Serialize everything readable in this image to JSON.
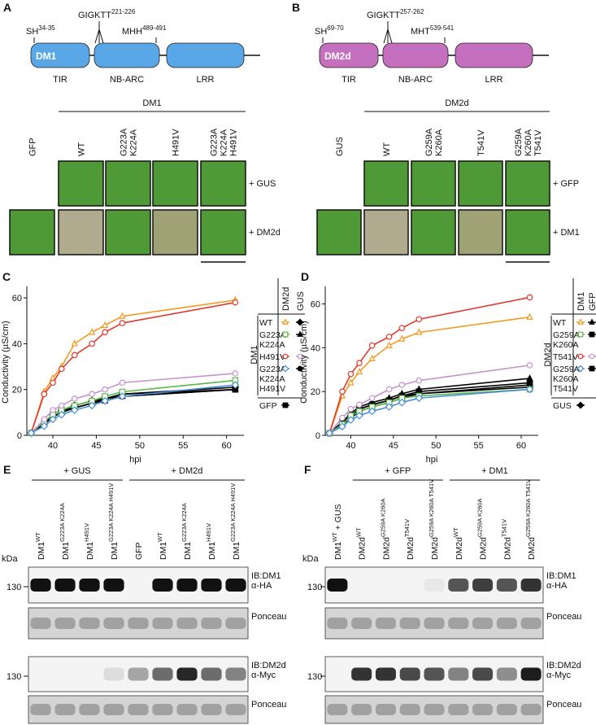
{
  "panels": [
    {
      "letter": "A",
      "domain": {
        "protein": "DM1",
        "color": "#5aa7e8",
        "motifs": [
          {
            "text": "SH",
            "sup": "34-35"
          },
          {
            "text": "GIGKTT",
            "sup": "221-226"
          },
          {
            "text": "MHH",
            "sup": "489-491"
          }
        ],
        "domains": [
          "TIR",
          "NB-ARC",
          "LRR"
        ]
      },
      "leaves": {
        "header": "DM1",
        "control": [
          "GFP"
        ],
        "columns": [
          [
            "WT"
          ],
          [
            "G223A",
            "K224A"
          ],
          [
            "H491V"
          ],
          [
            "G223A",
            "K224A",
            "H491V"
          ]
        ],
        "rows": [
          "+ GUS",
          "+ DM2d"
        ]
      }
    },
    {
      "letter": "B",
      "domain": {
        "protein": "DM2d",
        "color": "#c56fbf",
        "motifs": [
          {
            "text": "SH",
            "sup": "69-70"
          },
          {
            "text": "GIGKTT",
            "sup": "257-262"
          },
          {
            "text": "MHT",
            "sup": "539-541"
          }
        ],
        "domains": [
          "TIR",
          "NB-ARC",
          "LRR"
        ]
      },
      "leaves": {
        "header": "DM2d",
        "control": [
          "GUS"
        ],
        "columns": [
          [
            "WT"
          ],
          [
            "G259A",
            "K260A"
          ],
          [
            "T541V"
          ],
          [
            "G259A",
            "K260A",
            "T541V"
          ]
        ],
        "rows": [
          "+ GFP",
          "+ DM1"
        ]
      }
    }
  ],
  "chart_data": [
    {
      "type": "line",
      "letter": "C",
      "y_label": "Conductivity (µS/cm)",
      "x_label": "hpi",
      "x": [
        37.5,
        39,
        40,
        41,
        42.5,
        44.5,
        46,
        48,
        61
      ],
      "xlim": [
        37,
        62
      ],
      "ylim": [
        0,
        65
      ],
      "xticks": [
        40,
        45,
        50,
        55,
        60
      ],
      "yticks": [
        0,
        20,
        40,
        60
      ],
      "legend": {
        "columns": [
          "DM2d",
          "GUS"
        ],
        "group": "DM1",
        "rows": [
          {
            "label": [
              "WT"
            ],
            "series": [
              {
                "color": "#f39a1e",
                "marker": "triangle",
                "filled": false,
                "values": [
                  1,
                  19,
                  25,
                  30,
                  40,
                  45,
                  48,
                  52,
                  59
                ]
              },
              {
                "color": "#000000",
                "marker": "diamond",
                "filled": true,
                "values": [
                  1,
                  5,
                  9,
                  11,
                  13,
                  15,
                  16,
                  18,
                  21
                ]
              }
            ]
          },
          {
            "label": [
              "G223A",
              "K224A"
            ],
            "series": [
              {
                "color": "#5cb848",
                "marker": "square",
                "filled": false,
                "values": [
                  1,
                  6,
                  9,
                  11,
                  13,
                  15,
                  17,
                  19,
                  24
                ]
              },
              {
                "color": "#000000",
                "marker": "triangle",
                "filled": true,
                "values": [
                  1,
                  5,
                  8,
                  10,
                  12,
                  14,
                  15,
                  17,
                  20
                ]
              }
            ]
          },
          {
            "label": [
              "H491V"
            ],
            "series": [
              {
                "color": "#e03a2e",
                "marker": "circle",
                "filled": false,
                "values": [
                  1,
                  18,
                  23,
                  29,
                  35,
                  40,
                  45,
                  49,
                  58
                ]
              },
              {
                "color": "#c693cf",
                "marker": "circle",
                "filled": false,
                "values": [
                  1,
                  7,
                  11,
                  13,
                  16,
                  18,
                  20,
                  23,
                  27
                ]
              }
            ]
          },
          {
            "label": [
              "G223A",
              "K224A",
              "H491V"
            ],
            "series": [
              {
                "color": "#4a90d9",
                "marker": "diamond",
                "filled": false,
                "values": [
                  1,
                  4,
                  7,
                  9,
                  11,
                  13,
                  15,
                  17,
                  22
                ]
              },
              {
                "color": "#000000",
                "marker": "circle",
                "filled": true,
                "values": [
                  1,
                  5,
                  8,
                  10,
                  12,
                  14,
                  16,
                  17,
                  20
                ]
              }
            ]
          }
        ],
        "control": {
          "label": [
            "GFP"
          ],
          "series": [
            {
              "color": "#000000",
              "marker": "square",
              "filled": true,
              "values": [
                1,
                5,
                9,
                11,
                12,
                14,
                16,
                18,
                20
              ]
            }
          ]
        }
      }
    },
    {
      "type": "line",
      "letter": "D",
      "y_label": "Conductivity (µS/cm)",
      "x_label": "hpi",
      "x": [
        37.5,
        39,
        40,
        41,
        42.5,
        44.5,
        46,
        48,
        61
      ],
      "xlim": [
        37,
        62
      ],
      "ylim": [
        0,
        68
      ],
      "xticks": [
        40,
        45,
        50,
        55,
        60
      ],
      "yticks": [
        0,
        20,
        40,
        60
      ],
      "legend": {
        "columns": [
          "DM1",
          "GFP"
        ],
        "group": "DM2d",
        "rows": [
          {
            "label": [
              "WT"
            ],
            "series": [
              {
                "color": "#f39a1e",
                "marker": "triangle",
                "filled": false,
                "values": [
                  1,
                  18,
                  24,
                  29,
                  35,
                  41,
                  44,
                  47,
                  54
                ]
              },
              {
                "color": "#000000",
                "marker": "triangle",
                "filled": true,
                "values": [
                  1,
                  6,
                  10,
                  13,
                  15,
                  17,
                  19,
                  21,
                  26
                ]
              }
            ]
          },
          {
            "label": [
              "G259A",
              "K260A"
            ],
            "series": [
              {
                "color": "#5cb848",
                "marker": "square",
                "filled": false,
                "values": [
                  1,
                  5,
                  9,
                  11,
                  13,
                  15,
                  17,
                  18,
                  21
                ]
              },
              {
                "color": "#000000",
                "marker": "square",
                "filled": true,
                "values": [
                  1,
                  6,
                  9,
                  12,
                  14,
                  16,
                  18,
                  20,
                  24
                ]
              }
            ]
          },
          {
            "label": [
              "T541V"
            ],
            "series": [
              {
                "color": "#e03a2e",
                "marker": "circle",
                "filled": false,
                "values": [
                  1,
                  20,
                  28,
                  33,
                  41,
                  45,
                  49,
                  53,
                  63
                ]
              },
              {
                "color": "#c693cf",
                "marker": "circle",
                "filled": false,
                "values": [
                  1,
                  8,
                  12,
                  14,
                  17,
                  21,
                  23,
                  25,
                  32
                ]
              }
            ]
          },
          {
            "label": [
              "G259A",
              "K260A",
              "T541V"
            ],
            "series": [
              {
                "color": "#4a90d9",
                "marker": "diamond",
                "filled": false,
                "values": [
                  1,
                  4,
                  7,
                  9,
                  11,
                  13,
                  15,
                  17,
                  21
                ]
              },
              {
                "color": "#000000",
                "marker": "square",
                "filled": true,
                "values": [
                  1,
                  5,
                  8,
                  11,
                  13,
                  15,
                  17,
                  19,
                  23
                ]
              }
            ]
          }
        ],
        "control": {
          "label": [
            "GUS"
          ],
          "series": [
            {
              "color": "#000000",
              "marker": "diamond",
              "filled": true,
              "values": [
                1,
                6,
                9,
                12,
                14,
                16,
                18,
                19,
                22
              ]
            }
          ]
        }
      }
    }
  ],
  "blots": [
    {
      "letter": "E",
      "kda": "kDa",
      "groups": [
        "+ GUS",
        "+ DM2d"
      ],
      "lanes": [
        {
          "text": "DM1",
          "sup": "WT"
        },
        {
          "text": "DM1",
          "sup": "G223A K224A"
        },
        {
          "text": "DM1",
          "sup": "H491V"
        },
        {
          "text": "DM1",
          "sup": "G223A K224A H491V"
        },
        {
          "text": "GFP"
        },
        {
          "text": "DM1",
          "sup": "WT"
        },
        {
          "text": "DM1",
          "sup": "G223A K224A"
        },
        {
          "text": "DM1",
          "sup": "H491V"
        },
        {
          "text": "DM1",
          "sup": "G223A K224A H491V"
        }
      ],
      "strips": [
        {
          "label": [
            "IB:DM1",
            "α-HA"
          ],
          "size": 130
        },
        {
          "label": [
            "Ponceau"
          ]
        },
        {
          "label": [
            "IB:DM2d",
            "α-Myc"
          ],
          "size": 130
        },
        {
          "label": [
            "Ponceau"
          ]
        }
      ]
    },
    {
      "letter": "F",
      "kda": "kDa",
      "groups": [
        "+ GFP",
        "+ DM1"
      ],
      "lanes": [
        {
          "text": "DM1",
          "sup": "WT",
          "after": " + GUS"
        },
        {
          "text": "DM2d",
          "sup": "WT"
        },
        {
          "text": "DM2d",
          "sup": "G259A K260A"
        },
        {
          "text": "DM2d",
          "sup": "T541V"
        },
        {
          "text": "DM2d",
          "sup": "G259A K260A T541V"
        },
        {
          "text": "DM2d",
          "sup": "WT"
        },
        {
          "text": "DM2d",
          "sup": "G259A K260A"
        },
        {
          "text": "DM2d",
          "sup": "T541V"
        },
        {
          "text": "DM2d",
          "sup": "G259A K260A T541V"
        }
      ],
      "strips": [
        {
          "label": [
            "IB:DM1",
            "α-HA"
          ],
          "size": 130
        },
        {
          "label": [
            "Ponceau"
          ]
        },
        {
          "label": [
            "IB:DM2d",
            "α-Myc"
          ],
          "size": 130
        },
        {
          "label": [
            "Ponceau"
          ]
        }
      ]
    }
  ]
}
